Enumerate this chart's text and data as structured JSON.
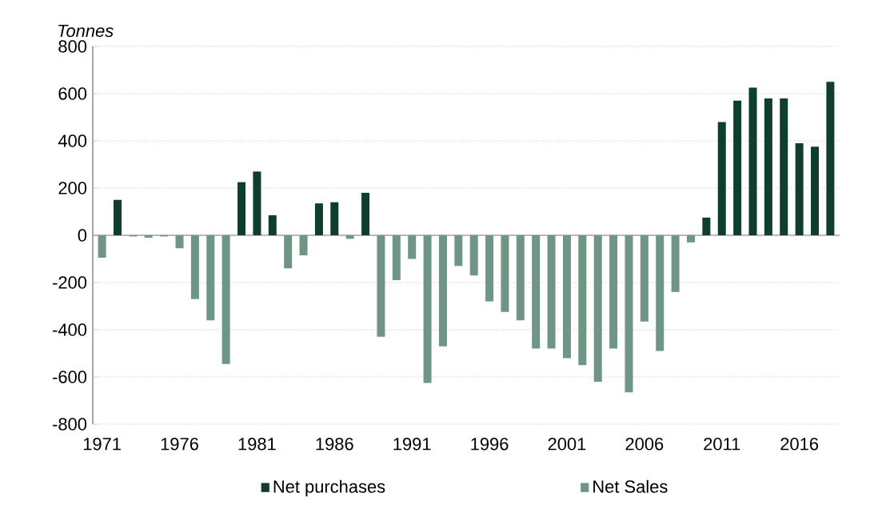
{
  "chart_data": {
    "type": "bar",
    "ylabel": "Tonnes",
    "stacked": true,
    "categories": [
      "1971",
      null,
      null,
      null,
      null,
      "1976",
      null,
      null,
      null,
      null,
      "1981",
      null,
      null,
      null,
      null,
      "1986",
      null,
      null,
      null,
      null,
      "1991",
      null,
      null,
      null,
      null,
      "1996",
      null,
      null,
      null,
      null,
      "2001",
      null,
      null,
      null,
      null,
      "2006",
      null,
      null,
      null,
      null,
      "2011",
      null,
      null,
      null,
      null,
      "2016",
      null,
      null
    ],
    "series": [
      {
        "name": "Net purchases",
        "color": "#0f3d2e",
        "values": [
          null,
          150,
          null,
          null,
          null,
          null,
          null,
          null,
          null,
          225,
          270,
          85,
          null,
          null,
          135,
          140,
          null,
          180,
          null,
          null,
          null,
          null,
          null,
          null,
          null,
          null,
          null,
          null,
          null,
          null,
          null,
          null,
          null,
          null,
          null,
          null,
          null,
          null,
          null,
          75,
          480,
          570,
          625,
          580,
          580,
          390,
          375,
          650
        ]
      },
      {
        "name": "Net Sales",
        "color": "#6f9586",
        "values": [
          -95,
          null,
          -5,
          -10,
          -5,
          -55,
          -270,
          -360,
          -545,
          null,
          null,
          null,
          -140,
          -85,
          null,
          null,
          -15,
          null,
          -430,
          -190,
          -100,
          -625,
          -470,
          -130,
          -170,
          -280,
          -325,
          -360,
          -480,
          -480,
          -520,
          -550,
          -620,
          -480,
          -665,
          -365,
          -490,
          -240,
          -30,
          null,
          null,
          null,
          null,
          null,
          null,
          null,
          null,
          null
        ]
      }
    ],
    "ylim": [
      -800,
      800
    ],
    "yticks": [
      -800,
      -600,
      -400,
      -200,
      0,
      200,
      400,
      600,
      800
    ],
    "grid": "y",
    "legend": "bottom"
  }
}
